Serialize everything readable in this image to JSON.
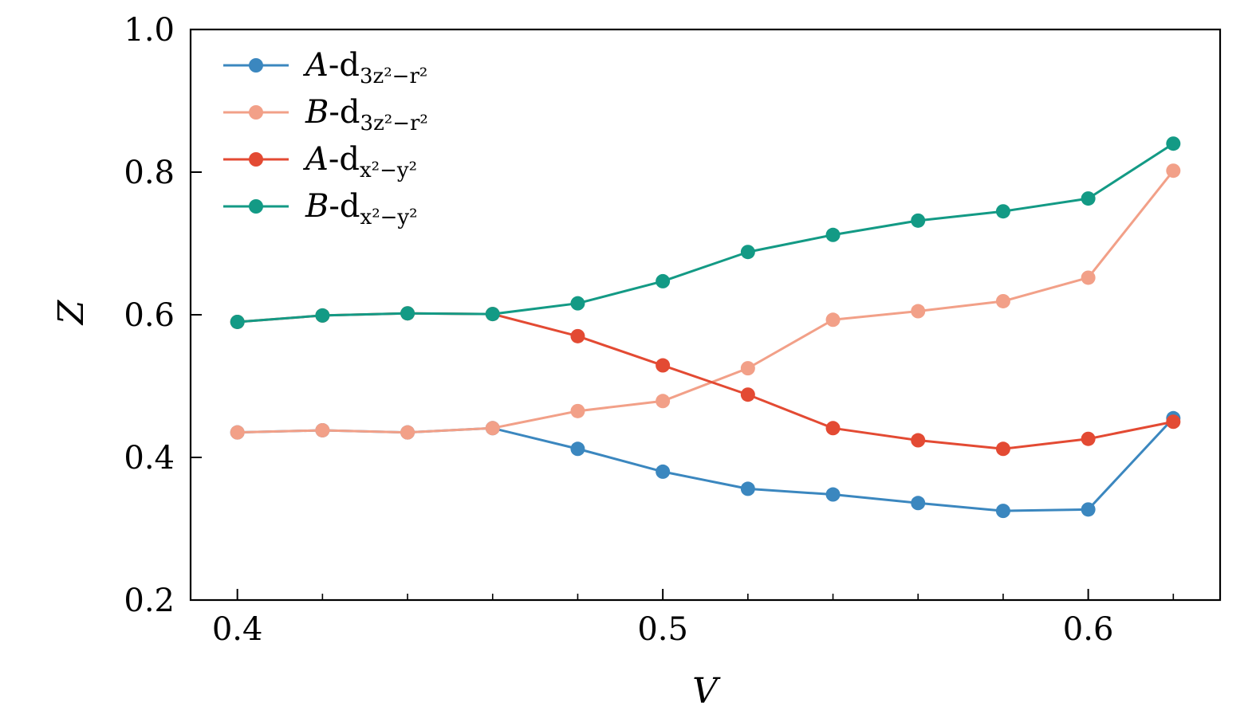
{
  "chart_data": {
    "type": "line",
    "title": "",
    "xlabel": "V",
    "ylabel": "Z",
    "xlim": [
      0.389,
      0.631
    ],
    "ylim": [
      0.2,
      1.0
    ],
    "xticks": [
      0.4,
      0.5,
      0.6
    ],
    "xtick_labels": [
      "0.4",
      "0.5",
      "0.6"
    ],
    "xminor_ticks": [
      0.42,
      0.44,
      0.46,
      0.48,
      0.52,
      0.54,
      0.56,
      0.58,
      0.62
    ],
    "yticks": [
      0.2,
      0.4,
      0.6,
      0.8,
      1.0
    ],
    "ytick_labels": [
      "0.2",
      "0.4",
      "0.6",
      "0.8",
      "1.0"
    ],
    "grid": false,
    "legend_position": "top-left",
    "x": [
      0.4,
      0.42,
      0.44,
      0.46,
      0.48,
      0.5,
      0.52,
      0.54,
      0.56,
      0.58,
      0.6,
      0.62
    ],
    "series": [
      {
        "name": "A-d3z²−r²",
        "label_main": "A",
        "label_mid": "-d",
        "label_sub": "3z²−r²",
        "color": "#3b87bf",
        "values": [
          0.435,
          0.438,
          0.435,
          0.441,
          0.412,
          0.38,
          0.356,
          0.348,
          0.336,
          0.325,
          0.327,
          0.455
        ]
      },
      {
        "name": "B-d3z²−r²",
        "label_main": "B",
        "label_mid": "-d",
        "label_sub": "3z²−r²",
        "color": "#f2a088",
        "values": [
          0.435,
          0.438,
          0.435,
          0.441,
          0.465,
          0.479,
          0.525,
          0.593,
          0.605,
          0.619,
          0.652,
          0.802
        ]
      },
      {
        "name": "A-dx²−y²",
        "label_main": "A",
        "label_mid": "-d",
        "label_sub": "x²−y²",
        "color": "#e34a33",
        "values": [
          0.59,
          0.599,
          0.602,
          0.601,
          0.57,
          0.529,
          0.488,
          0.441,
          0.424,
          0.412,
          0.426,
          0.45
        ]
      },
      {
        "name": "B-dx²−y²",
        "label_main": "B",
        "label_mid": "-d",
        "label_sub": "x²−y²",
        "color": "#139a85",
        "values": [
          0.59,
          0.599,
          0.602,
          0.601,
          0.616,
          0.647,
          0.688,
          0.712,
          0.732,
          0.745,
          0.763,
          0.84
        ]
      }
    ]
  }
}
